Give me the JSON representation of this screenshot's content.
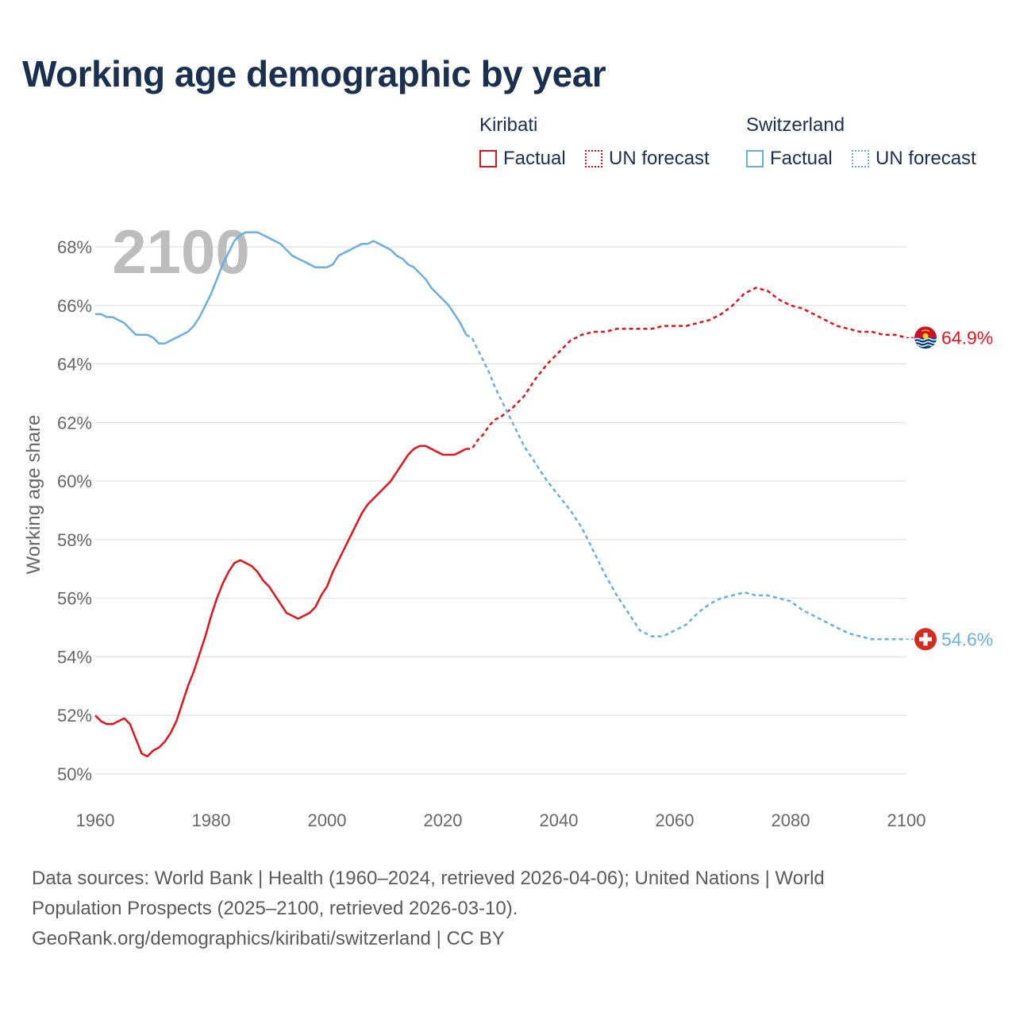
{
  "title": "Working age demographic by year",
  "legend": {
    "groups": [
      {
        "name": "Kiribati",
        "factual_label": "Factual",
        "forecast_label": "UN forecast",
        "color": "#e3131b"
      },
      {
        "name": "Switzerland",
        "factual_label": "Factual",
        "forecast_label": "UN forecast",
        "color": "#6aaee2"
      }
    ]
  },
  "year_watermark": "2100",
  "chart_data": {
    "type": "line",
    "title": "Working age demographic by year",
    "xlabel": "",
    "ylabel": "Working age share",
    "xlim": [
      1960,
      2100
    ],
    "ylim": [
      50,
      69
    ],
    "x_ticks": [
      1960,
      1980,
      2000,
      2020,
      2040,
      2060,
      2080,
      2100
    ],
    "y_ticks": [
      50,
      52,
      54,
      56,
      58,
      60,
      62,
      64,
      66,
      68
    ],
    "y_tick_labels": [
      "50%",
      "52%",
      "54%",
      "56%",
      "58%",
      "60%",
      "62%",
      "64%",
      "66%",
      "68%"
    ],
    "factual_range": [
      1960,
      2024
    ],
    "forecast_range": [
      2025,
      2100
    ],
    "series": [
      {
        "name": "Kiribati",
        "color": "#e3131b",
        "end_label": "64.9%",
        "x": [
          1960,
          1961,
          1962,
          1963,
          1964,
          1965,
          1966,
          1967,
          1968,
          1969,
          1970,
          1971,
          1972,
          1973,
          1974,
          1975,
          1976,
          1977,
          1978,
          1979,
          1980,
          1981,
          1982,
          1983,
          1984,
          1985,
          1986,
          1987,
          1988,
          1989,
          1990,
          1991,
          1992,
          1993,
          1994,
          1995,
          1996,
          1997,
          1998,
          1999,
          2000,
          2001,
          2002,
          2003,
          2004,
          2005,
          2006,
          2007,
          2008,
          2009,
          2010,
          2011,
          2012,
          2013,
          2014,
          2015,
          2016,
          2017,
          2018,
          2019,
          2020,
          2021,
          2022,
          2023,
          2024,
          2025,
          2026,
          2027,
          2028,
          2029,
          2030,
          2032,
          2034,
          2036,
          2038,
          2040,
          2042,
          2044,
          2046,
          2048,
          2050,
          2052,
          2054,
          2056,
          2058,
          2060,
          2062,
          2064,
          2066,
          2068,
          2070,
          2072,
          2074,
          2076,
          2078,
          2080,
          2082,
          2084,
          2086,
          2088,
          2090,
          2092,
          2094,
          2096,
          2098,
          2100
        ],
        "values": [
          52.0,
          51.8,
          51.7,
          51.7,
          51.8,
          51.9,
          51.7,
          51.2,
          50.7,
          50.6,
          50.8,
          50.9,
          51.1,
          51.4,
          51.8,
          52.4,
          53.0,
          53.5,
          54.1,
          54.7,
          55.4,
          56.0,
          56.5,
          56.9,
          57.2,
          57.3,
          57.2,
          57.1,
          56.9,
          56.6,
          56.4,
          56.1,
          55.8,
          55.5,
          55.4,
          55.3,
          55.4,
          55.5,
          55.7,
          56.1,
          56.4,
          56.9,
          57.3,
          57.7,
          58.1,
          58.5,
          58.9,
          59.2,
          59.4,
          59.6,
          59.8,
          60.0,
          60.3,
          60.6,
          60.9,
          61.1,
          61.2,
          61.2,
          61.1,
          61.0,
          60.9,
          60.9,
          60.9,
          61.0,
          61.1,
          61.1,
          61.4,
          61.6,
          61.9,
          62.1,
          62.2,
          62.5,
          62.9,
          63.5,
          64.0,
          64.4,
          64.8,
          65.0,
          65.1,
          65.1,
          65.2,
          65.2,
          65.2,
          65.2,
          65.3,
          65.3,
          65.3,
          65.4,
          65.5,
          65.7,
          66.0,
          66.4,
          66.6,
          66.5,
          66.2,
          66.0,
          65.9,
          65.7,
          65.5,
          65.3,
          65.2,
          65.1,
          65.1,
          65.0,
          65.0,
          64.9
        ]
      },
      {
        "name": "Switzerland",
        "color": "#6aaee2",
        "end_label": "54.6%",
        "x": [
          1960,
          1961,
          1962,
          1963,
          1964,
          1965,
          1966,
          1967,
          1968,
          1969,
          1970,
          1971,
          1972,
          1973,
          1974,
          1975,
          1976,
          1977,
          1978,
          1979,
          1980,
          1981,
          1982,
          1983,
          1984,
          1985,
          1986,
          1987,
          1988,
          1989,
          1990,
          1991,
          1992,
          1993,
          1994,
          1995,
          1996,
          1997,
          1998,
          1999,
          2000,
          2001,
          2002,
          2003,
          2004,
          2005,
          2006,
          2007,
          2008,
          2009,
          2010,
          2011,
          2012,
          2013,
          2014,
          2015,
          2016,
          2017,
          2018,
          2019,
          2020,
          2021,
          2022,
          2023,
          2024,
          2025,
          2026,
          2027,
          2028,
          2029,
          2030,
          2032,
          2034,
          2036,
          2038,
          2040,
          2042,
          2044,
          2046,
          2048,
          2050,
          2052,
          2054,
          2056,
          2058,
          2060,
          2062,
          2064,
          2066,
          2068,
          2070,
          2072,
          2074,
          2076,
          2078,
          2080,
          2082,
          2084,
          2086,
          2088,
          2090,
          2092,
          2094,
          2096,
          2098,
          2100
        ],
        "values": [
          65.7,
          65.7,
          65.6,
          65.6,
          65.5,
          65.4,
          65.2,
          65.0,
          65.0,
          65.0,
          64.9,
          64.7,
          64.7,
          64.8,
          64.9,
          65.0,
          65.1,
          65.3,
          65.6,
          66.0,
          66.4,
          66.9,
          67.4,
          67.8,
          68.2,
          68.4,
          68.5,
          68.5,
          68.5,
          68.4,
          68.3,
          68.2,
          68.1,
          67.9,
          67.7,
          67.6,
          67.5,
          67.4,
          67.3,
          67.3,
          67.3,
          67.4,
          67.7,
          67.8,
          67.9,
          68.0,
          68.1,
          68.1,
          68.2,
          68.1,
          68.0,
          67.9,
          67.7,
          67.6,
          67.4,
          67.3,
          67.1,
          66.9,
          66.6,
          66.4,
          66.2,
          66.0,
          65.7,
          65.4,
          65.0,
          64.9,
          64.5,
          64.1,
          63.7,
          63.2,
          62.8,
          62.0,
          61.2,
          60.6,
          60.0,
          59.5,
          59.0,
          58.4,
          57.6,
          56.8,
          56.1,
          55.5,
          54.9,
          54.7,
          54.7,
          54.9,
          55.1,
          55.5,
          55.8,
          56.0,
          56.1,
          56.2,
          56.1,
          56.1,
          56.0,
          55.9,
          55.6,
          55.4,
          55.2,
          55.0,
          54.8,
          54.7,
          54.6,
          54.6,
          54.6,
          54.6
        ]
      }
    ]
  },
  "footer": {
    "line1": "Data sources: World Bank | Health (1960–2024, retrieved 2026-04-06); United Nations | World",
    "line2": "Population Prospects (2025–2100, retrieved 2026-03-10).",
    "line3": "GeoRank.org/demographics/kiribati/switzerland | CC BY"
  }
}
